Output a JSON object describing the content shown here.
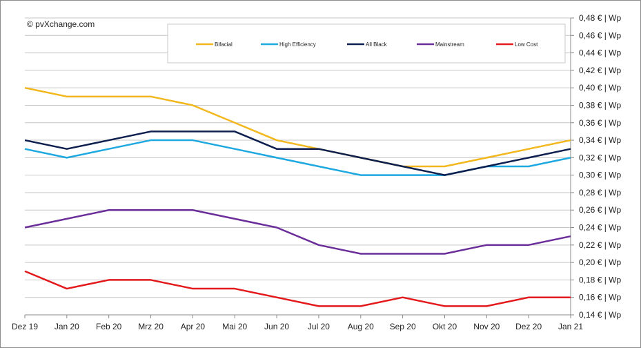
{
  "chart_data": {
    "type": "line",
    "watermark": "© pvXchange.com",
    "categories": [
      "Dez 19",
      "Jan 20",
      "Feb 20",
      "Mrz 20",
      "Apr 20",
      "Mai 20",
      "Jun 20",
      "Jul 20",
      "Aug 20",
      "Sep 20",
      "Okt 20",
      "Nov 20",
      "Dez 20",
      "Jan 21"
    ],
    "ylim": [
      0.14,
      0.48
    ],
    "ystep": 0.02,
    "y_tick_suffix": " € | Wp",
    "y_axis_position": "right",
    "grid": true,
    "legend_position": "top",
    "series": [
      {
        "name": "Bifacial",
        "color": "#f2b71c",
        "values": [
          0.4,
          0.39,
          0.39,
          0.39,
          0.38,
          0.36,
          0.34,
          0.33,
          0.32,
          0.31,
          0.31,
          0.32,
          0.33,
          0.34
        ]
      },
      {
        "name": "High Efficiency",
        "color": "#1ea8e0",
        "values": [
          0.33,
          0.32,
          0.33,
          0.34,
          0.34,
          0.33,
          0.32,
          0.31,
          0.3,
          0.3,
          0.3,
          0.31,
          0.31,
          0.32
        ]
      },
      {
        "name": "All Black",
        "color": "#0d1f4f",
        "values": [
          0.34,
          0.33,
          0.34,
          0.35,
          0.35,
          0.35,
          0.33,
          0.33,
          0.32,
          0.31,
          0.3,
          0.31,
          0.32,
          0.33
        ]
      },
      {
        "name": "Mainstream",
        "color": "#6a2d9a",
        "values": [
          0.24,
          0.25,
          0.26,
          0.26,
          0.26,
          0.25,
          0.24,
          0.22,
          0.21,
          0.21,
          0.21,
          0.22,
          0.22,
          0.23
        ]
      },
      {
        "name": "Low Cost",
        "color": "#e3191c",
        "values": [
          0.19,
          0.17,
          0.18,
          0.18,
          0.17,
          0.17,
          0.16,
          0.15,
          0.15,
          0.16,
          0.15,
          0.15,
          0.16,
          0.16
        ]
      }
    ]
  }
}
